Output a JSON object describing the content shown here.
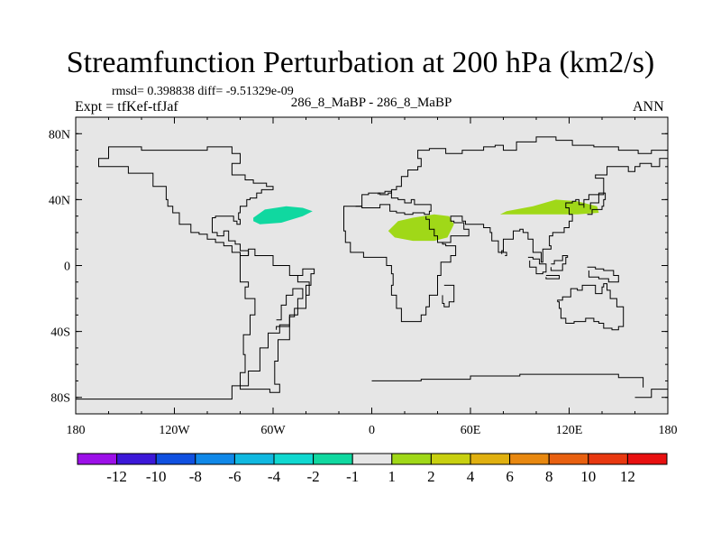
{
  "title": "Streamfunction Perturbation at 200 hPa (km2/s)",
  "stats": "rmsd= 0.398838 diff= -9.51329e-09",
  "experiment": "Expt = tfKef-tfJaf",
  "cases": "286_8_MaBP - 286_8_MaBP",
  "season": "ANN",
  "map": {
    "lon_range": [
      -180,
      180
    ],
    "lat_range": [
      -90,
      90
    ],
    "background_color": "#e6e6e6",
    "lat_ticks": [
      {
        "value": 80,
        "label": "80N"
      },
      {
        "value": 40,
        "label": "40N"
      },
      {
        "value": 0,
        "label": "0"
      },
      {
        "value": -40,
        "label": "40S"
      },
      {
        "value": -80,
        "label": "80S"
      }
    ],
    "lon_ticks": [
      {
        "value": -180,
        "label": "180"
      },
      {
        "value": -120,
        "label": "120W"
      },
      {
        "value": -60,
        "label": "60W"
      },
      {
        "value": 0,
        "label": "0"
      },
      {
        "value": 60,
        "label": "60E"
      },
      {
        "value": 120,
        "label": "120E"
      },
      {
        "value": 180,
        "label": "180"
      }
    ],
    "anomalies": [
      {
        "name": "anomaly-north-america",
        "color": "#10d8a0",
        "points": [
          [
            -72,
            29
          ],
          [
            -65,
            34
          ],
          [
            -52,
            36
          ],
          [
            -42,
            35
          ],
          [
            -36,
            33
          ],
          [
            -42,
            30
          ],
          [
            -55,
            26
          ],
          [
            -68,
            25
          ],
          [
            -72,
            27
          ]
        ]
      },
      {
        "name": "anomaly-north-africa",
        "color": "#a0d818",
        "points": [
          [
            10,
            21
          ],
          [
            16,
            27
          ],
          [
            25,
            29
          ],
          [
            38,
            31
          ],
          [
            47,
            30
          ],
          [
            50,
            25
          ],
          [
            46,
            17
          ],
          [
            38,
            15
          ],
          [
            25,
            15
          ],
          [
            14,
            17
          ]
        ]
      },
      {
        "name": "anomaly-east-asia",
        "color": "#a0d818",
        "points": [
          [
            78,
            31
          ],
          [
            82,
            33
          ],
          [
            98,
            36
          ],
          [
            112,
            40
          ],
          [
            125,
            39
          ],
          [
            137,
            36
          ],
          [
            138,
            32
          ],
          [
            125,
            31
          ],
          [
            108,
            31
          ],
          [
            92,
            31
          ]
        ]
      }
    ],
    "coastlines": [
      [
        [
          -180,
          -81
        ],
        [
          -92,
          -81
        ],
        [
          -85,
          -73
        ],
        [
          -75,
          -64
        ],
        [
          -68,
          -50
        ],
        [
          -63,
          -41
        ],
        [
          -56,
          -36
        ],
        [
          -50,
          -31
        ],
        [
          -47,
          -26
        ],
        [
          -40,
          -18
        ],
        [
          -38,
          -10
        ],
        [
          -45,
          -6
        ],
        [
          -50,
          0
        ],
        [
          -60,
          6
        ],
        [
          -71,
          10
        ],
        [
          -75,
          6
        ],
        [
          -80,
          0
        ],
        [
          -80,
          -10
        ],
        [
          -75,
          -13
        ],
        [
          -77,
          -20
        ],
        [
          -71,
          -30
        ],
        [
          -74,
          -42
        ],
        [
          -78,
          -54
        ],
        [
          -77,
          -65
        ],
        [
          -80,
          -75
        ],
        [
          -62,
          -77
        ],
        [
          -56,
          -72
        ],
        [
          -59,
          -58
        ],
        [
          -57,
          -45
        ],
        [
          -50,
          -34
        ]
      ],
      [
        [
          -75,
          6
        ],
        [
          -80,
          8
        ],
        [
          -85,
          12
        ],
        [
          -90,
          14
        ],
        [
          -95,
          16
        ],
        [
          -100,
          19
        ],
        [
          -105,
          20
        ],
        [
          -110,
          25
        ],
        [
          -117,
          32
        ],
        [
          -121,
          36
        ],
        [
          -124,
          40
        ],
        [
          -125,
          48
        ],
        [
          -133,
          56
        ],
        [
          -148,
          60
        ],
        [
          -165,
          60
        ],
        [
          -166,
          65
        ],
        [
          -160,
          72
        ],
        [
          -140,
          70
        ],
        [
          -125,
          70
        ],
        [
          -100,
          72
        ],
        [
          -85,
          68
        ],
        [
          -80,
          62
        ],
        [
          -85,
          55
        ],
        [
          -77,
          52
        ],
        [
          -72,
          50
        ],
        [
          -64,
          48
        ],
        [
          -60,
          46
        ],
        [
          -67,
          44
        ],
        [
          -70,
          41
        ],
        [
          -74,
          40
        ],
        [
          -76,
          36
        ],
        [
          -80,
          32
        ],
        [
          -81,
          28
        ],
        [
          -80,
          25
        ],
        [
          -82,
          27
        ],
        [
          -84,
          30
        ],
        [
          -89,
          30
        ],
        [
          -95,
          29
        ],
        [
          -97,
          25
        ],
        [
          -97,
          20
        ],
        [
          -94,
          18
        ],
        [
          -90,
          21
        ],
        [
          -87,
          20
        ],
        [
          -87,
          15
        ],
        [
          -83,
          13
        ],
        [
          -80,
          9
        ],
        [
          -75,
          6
        ]
      ],
      [
        [
          -58,
          -33
        ],
        [
          -55,
          -24
        ],
        [
          -52,
          -18
        ],
        [
          -48,
          -14
        ],
        [
          -42,
          -20
        ],
        [
          -45,
          -30
        ],
        [
          -50,
          -37
        ],
        [
          -58,
          -39
        ]
      ],
      [
        [
          -45,
          -6
        ],
        [
          -42,
          -2
        ],
        [
          -35,
          -5
        ],
        [
          -37,
          -12
        ],
        [
          -40,
          -18
        ]
      ],
      [
        [
          -10,
          36
        ],
        [
          -6,
          43
        ],
        [
          -2,
          44
        ],
        [
          5,
          43
        ],
        [
          10,
          44
        ],
        [
          12,
          46
        ],
        [
          15,
          48
        ],
        [
          18,
          54
        ],
        [
          22,
          58
        ],
        [
          28,
          60
        ],
        [
          30,
          65
        ],
        [
          28,
          70
        ],
        [
          35,
          71
        ],
        [
          45,
          68
        ],
        [
          55,
          70
        ],
        [
          68,
          72
        ],
        [
          75,
          73
        ],
        [
          80,
          70
        ],
        [
          88,
          75
        ],
        [
          100,
          78
        ],
        [
          112,
          76
        ],
        [
          122,
          73
        ],
        [
          135,
          72
        ],
        [
          150,
          70
        ],
        [
          162,
          68
        ],
        [
          170,
          70
        ],
        [
          180,
          68
        ]
      ],
      [
        [
          -10,
          36
        ],
        [
          -6,
          35
        ],
        [
          -2,
          35
        ],
        [
          5,
          37
        ],
        [
          10,
          37
        ],
        [
          11,
          33
        ],
        [
          15,
          32
        ],
        [
          20,
          31
        ],
        [
          25,
          32
        ],
        [
          32,
          31
        ],
        [
          35,
          33
        ],
        [
          36,
          37
        ],
        [
          32,
          37
        ],
        [
          28,
          37
        ],
        [
          26,
          40
        ],
        [
          24,
          38
        ],
        [
          20,
          40
        ],
        [
          16,
          41
        ],
        [
          12,
          45
        ],
        [
          8,
          44
        ],
        [
          4,
          43
        ]
      ],
      [
        [
          -10,
          36
        ],
        [
          -17,
          21
        ],
        [
          -16,
          14
        ],
        [
          -13,
          8
        ],
        [
          -5,
          5
        ],
        [
          5,
          5
        ],
        [
          9,
          4
        ],
        [
          9,
          0
        ],
        [
          12,
          -5
        ],
        [
          13,
          -12
        ],
        [
          12,
          -18
        ],
        [
          15,
          -26
        ],
        [
          18,
          -34
        ],
        [
          25,
          -34
        ],
        [
          30,
          -30
        ],
        [
          33,
          -25
        ],
        [
          35,
          -18
        ],
        [
          40,
          -12
        ],
        [
          40,
          -6
        ],
        [
          42,
          2
        ],
        [
          48,
          6
        ],
        [
          51,
          12
        ],
        [
          45,
          13
        ],
        [
          43,
          14
        ],
        [
          40,
          18
        ],
        [
          38,
          22
        ],
        [
          35,
          28
        ],
        [
          33,
          30
        ]
      ],
      [
        [
          43,
          14
        ],
        [
          48,
          18
        ],
        [
          55,
          18
        ],
        [
          59,
          22
        ],
        [
          56,
          26
        ],
        [
          50,
          27
        ],
        [
          48,
          30
        ],
        [
          55,
          27
        ],
        [
          57,
          25
        ],
        [
          60,
          25
        ],
        [
          66,
          25
        ],
        [
          68,
          23
        ],
        [
          72,
          20
        ],
        [
          73,
          15
        ],
        [
          77,
          8
        ],
        [
          80,
          12
        ],
        [
          80,
          16
        ],
        [
          86,
          21
        ],
        [
          90,
          22
        ],
        [
          92,
          20
        ],
        [
          95,
          16
        ],
        [
          98,
          16
        ],
        [
          98,
          8
        ],
        [
          103,
          2
        ],
        [
          104,
          10
        ],
        [
          106,
          10
        ],
        [
          109,
          12
        ],
        [
          108,
          18
        ],
        [
          110,
          20
        ],
        [
          117,
          23
        ],
        [
          120,
          27
        ],
        [
          122,
          31
        ],
        [
          120,
          35
        ],
        [
          118,
          38
        ],
        [
          122,
          39
        ],
        [
          124,
          40
        ],
        [
          126,
          37
        ],
        [
          129,
          35
        ],
        [
          129,
          40
        ],
        [
          132,
          43
        ],
        [
          141,
          47
        ],
        [
          141,
          53
        ],
        [
          136,
          55
        ],
        [
          143,
          60
        ],
        [
          150,
          60
        ],
        [
          156,
          57
        ],
        [
          160,
          60
        ],
        [
          163,
          62
        ],
        [
          170,
          60
        ],
        [
          175,
          65
        ],
        [
          180,
          65
        ]
      ],
      [
        [
          131,
          31
        ],
        [
          134,
          34
        ],
        [
          140,
          36
        ],
        [
          141,
          40
        ],
        [
          142,
          44
        ],
        [
          138,
          38
        ],
        [
          133,
          34
        ]
      ],
      [
        [
          113,
          -22
        ],
        [
          114,
          -26
        ],
        [
          115,
          -32
        ],
        [
          118,
          -35
        ],
        [
          123,
          -34
        ],
        [
          130,
          -32
        ],
        [
          135,
          -34
        ],
        [
          138,
          -35
        ],
        [
          141,
          -38
        ],
        [
          146,
          -39
        ],
        [
          150,
          -37
        ],
        [
          153,
          -30
        ],
        [
          153,
          -25
        ],
        [
          149,
          -20
        ],
        [
          145,
          -15
        ],
        [
          143,
          -11
        ],
        [
          141,
          -13
        ],
        [
          140,
          -17
        ],
        [
          136,
          -15
        ],
        [
          136,
          -12
        ],
        [
          131,
          -12
        ],
        [
          128,
          -15
        ],
        [
          125,
          -14
        ],
        [
          121,
          -19
        ],
        [
          116,
          -21
        ],
        [
          113,
          -22
        ]
      ],
      [
        [
          95,
          5
        ],
        [
          98,
          4
        ],
        [
          102,
          1
        ],
        [
          106,
          -4
        ],
        [
          104,
          -5
        ],
        [
          100,
          -1
        ],
        [
          96,
          3
        ]
      ],
      [
        [
          109,
          1
        ],
        [
          111,
          3
        ],
        [
          116,
          6
        ],
        [
          119,
          5
        ],
        [
          118,
          1
        ],
        [
          116,
          -3
        ],
        [
          111,
          -3
        ],
        [
          109,
          -1
        ]
      ],
      [
        [
          131,
          -1
        ],
        [
          136,
          -2
        ],
        [
          141,
          -3
        ],
        [
          147,
          -6
        ],
        [
          150,
          -10
        ],
        [
          144,
          -8
        ],
        [
          138,
          -7
        ],
        [
          132,
          -3
        ]
      ],
      [
        [
          44,
          -12
        ],
        [
          50,
          -15
        ],
        [
          50,
          -22
        ],
        [
          47,
          -25
        ],
        [
          44,
          -23
        ],
        [
          43,
          -18
        ]
      ],
      [
        [
          81,
          6
        ],
        [
          82,
          8
        ],
        [
          80,
          9
        ],
        [
          79,
          7
        ]
      ],
      [
        [
          106,
          -6
        ],
        [
          114,
          -7
        ],
        [
          114,
          -8
        ],
        [
          106,
          -7
        ]
      ],
      [
        [
          160,
          -80
        ],
        [
          170,
          -75
        ],
        [
          180,
          -78
        ]
      ],
      [
        [
          0,
          -70
        ],
        [
          30,
          -69
        ],
        [
          60,
          -67
        ],
        [
          90,
          -66
        ],
        [
          120,
          -66
        ],
        [
          150,
          -68
        ],
        [
          165,
          -74
        ]
      ]
    ],
    "colorbar": {
      "labels": [
        "-12",
        "-10",
        "-8",
        "-6",
        "-4",
        "-2",
        "-1",
        "1",
        "2",
        "4",
        "6",
        "8",
        "10",
        "12"
      ],
      "colors": [
        "#9c10e8",
        "#3c18d8",
        "#1050e0",
        "#1088e8",
        "#10b8e0",
        "#10d8d0",
        "#10d8a0",
        "#e6e6e6",
        "#a0d818",
        "#c8d010",
        "#e0b010",
        "#e88810",
        "#e86010",
        "#e83810",
        "#e81010"
      ]
    }
  }
}
